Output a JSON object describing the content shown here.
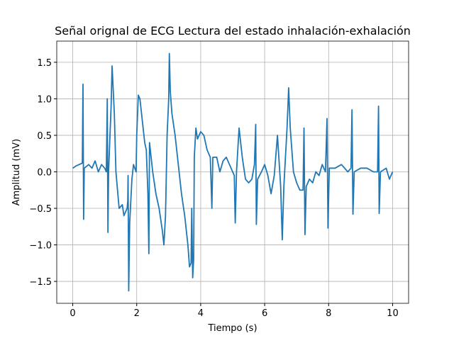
{
  "chart_data": {
    "type": "line",
    "title": "Señal orignal de ECG Lectura del estado inhalación-exhalación",
    "x_label": "Tiempo (s)",
    "y_label": "Amplitud (mV)",
    "x": [
      0,
      0.1,
      0.2,
      0.3,
      0.32,
      0.34,
      0.36,
      0.5,
      0.6,
      0.7,
      0.8,
      0.9,
      1.0,
      1.05,
      1.08,
      1.1,
      1.12,
      1.2,
      1.23,
      1.3,
      1.35,
      1.45,
      1.55,
      1.6,
      1.7,
      1.72,
      1.73,
      1.75,
      1.78,
      1.85,
      1.9,
      1.98,
      2.0,
      2.05,
      2.1,
      2.2,
      2.25,
      2.3,
      2.35,
      2.38,
      2.4,
      2.5,
      2.6,
      2.7,
      2.8,
      2.85,
      2.9,
      2.95,
      3.0,
      3.02,
      3.05,
      3.1,
      3.2,
      3.3,
      3.4,
      3.5,
      3.6,
      3.65,
      3.7,
      3.72,
      3.75,
      3.78,
      3.8,
      3.85,
      3.9,
      4.0,
      4.1,
      4.2,
      4.3,
      4.35,
      4.38,
      4.5,
      4.6,
      4.7,
      4.8,
      4.9,
      5.0,
      5.05,
      5.08,
      5.12,
      5.2,
      5.3,
      5.4,
      5.5,
      5.6,
      5.68,
      5.72,
      5.74,
      5.78,
      5.9,
      6.0,
      6.1,
      6.2,
      6.3,
      6.4,
      6.5,
      6.55,
      6.6,
      6.7,
      6.75,
      6.8,
      6.9,
      7.0,
      7.1,
      7.2,
      7.23,
      7.26,
      7.3,
      7.4,
      7.5,
      7.6,
      7.7,
      7.8,
      7.9,
      7.95,
      7.98,
      8.02,
      8.2,
      8.4,
      8.6,
      8.7,
      8.73,
      8.76,
      8.8,
      9.0,
      9.2,
      9.4,
      9.53,
      9.56,
      9.58,
      9.62,
      9.8,
      9.9,
      10.0
    ],
    "series": [
      {
        "name": "ECG",
        "color": "#1f77b4",
        "values": [
          0.05,
          0.08,
          0.1,
          0.12,
          1.2,
          -0.65,
          0.05,
          0.1,
          0.05,
          0.15,
          0.0,
          0.1,
          0.05,
          0.0,
          1.0,
          -0.83,
          0.0,
          0.9,
          1.45,
          0.8,
          0.0,
          -0.5,
          -0.45,
          -0.6,
          -0.5,
          -0.4,
          -0.05,
          -1.63,
          -0.7,
          -0.1,
          0.1,
          0.0,
          0.5,
          1.05,
          1.0,
          0.6,
          0.4,
          0.3,
          -0.3,
          -1.12,
          0.4,
          0.0,
          -0.3,
          -0.5,
          -0.8,
          -1.0,
          -0.6,
          0.5,
          1.0,
          1.62,
          1.1,
          0.8,
          0.5,
          0.1,
          -0.3,
          -0.6,
          -1.0,
          -1.3,
          -1.25,
          -0.5,
          -1.45,
          -1.2,
          0.2,
          0.6,
          0.45,
          0.55,
          0.5,
          0.3,
          0.2,
          -0.5,
          0.2,
          0.2,
          0.0,
          0.15,
          0.2,
          0.1,
          0.0,
          -0.05,
          -0.7,
          0.0,
          0.6,
          0.2,
          -0.1,
          -0.15,
          -0.1,
          0.1,
          0.65,
          -0.72,
          -0.1,
          0.0,
          0.1,
          -0.05,
          -0.3,
          -0.05,
          0.5,
          -0.2,
          -0.93,
          -0.2,
          0.6,
          1.15,
          0.6,
          0.0,
          -0.15,
          -0.25,
          -0.25,
          0.6,
          -0.86,
          -0.2,
          -0.1,
          -0.15,
          0.0,
          -0.05,
          0.1,
          0.0,
          0.73,
          -0.77,
          0.05,
          0.05,
          0.1,
          0.0,
          0.05,
          0.85,
          -0.58,
          0.0,
          0.05,
          0.05,
          0.0,
          0.0,
          0.9,
          -0.57,
          0.0,
          0.05,
          -0.1,
          0.0
        ]
      }
    ],
    "xlim": [
      -0.5,
      10.5
    ],
    "ylim": [
      -1.8,
      1.79
    ],
    "xticks": [
      0,
      2,
      4,
      6,
      8,
      10
    ],
    "yticks": [
      {
        "value": -1.5,
        "label": "−1.5"
      },
      {
        "value": -1.0,
        "label": "−1.0"
      },
      {
        "value": -0.5,
        "label": "−0.5"
      },
      {
        "value": 0.0,
        "label": "0.0"
      },
      {
        "value": 0.5,
        "label": "0.5"
      },
      {
        "value": 1.0,
        "label": "1.0"
      },
      {
        "value": 1.5,
        "label": "1.5"
      }
    ],
    "grid": true
  }
}
